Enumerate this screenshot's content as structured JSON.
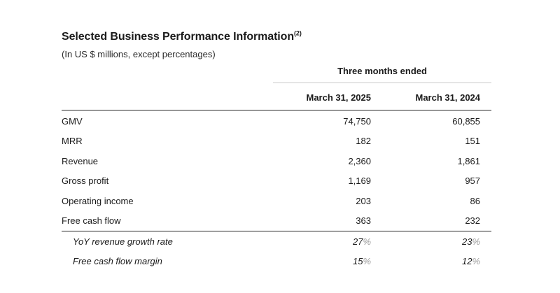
{
  "page": {
    "title": "Selected Business Performance Information",
    "title_footnote": "(2)",
    "subtitle": "(In US $ millions, except percentages)"
  },
  "table": {
    "spanner": "Three months ended",
    "columns": [
      "March 31, 2025",
      "March 31, 2024"
    ],
    "rows": [
      {
        "label": "GMV",
        "v2025": "74,750",
        "v2024": "60,855",
        "suffix": ""
      },
      {
        "label": "MRR",
        "v2025": "182",
        "v2024": "151",
        "suffix": ""
      },
      {
        "label": "Revenue",
        "v2025": "2,360",
        "v2024": "1,861",
        "suffix": ""
      },
      {
        "label": "Gross profit",
        "v2025": "1,169",
        "v2024": "957",
        "suffix": ""
      },
      {
        "label": "Operating income",
        "v2025": "203",
        "v2024": "86",
        "suffix": ""
      },
      {
        "label": "Free cash flow",
        "v2025": "363",
        "v2024": "232",
        "suffix": ""
      }
    ],
    "ratio_rows": [
      {
        "label": "YoY revenue growth rate",
        "v2025": "27",
        "v2024": "23",
        "suffix": "%"
      },
      {
        "label": "Free cash flow margin",
        "v2025": "15",
        "v2024": "12",
        "suffix": "%"
      }
    ]
  },
  "colors": {
    "text": "#1b1b1b",
    "percent_muted": "#9b9b9b",
    "rule_dark": "#262626",
    "rule_light": "#c9c9c9",
    "background": "#ffffff"
  }
}
